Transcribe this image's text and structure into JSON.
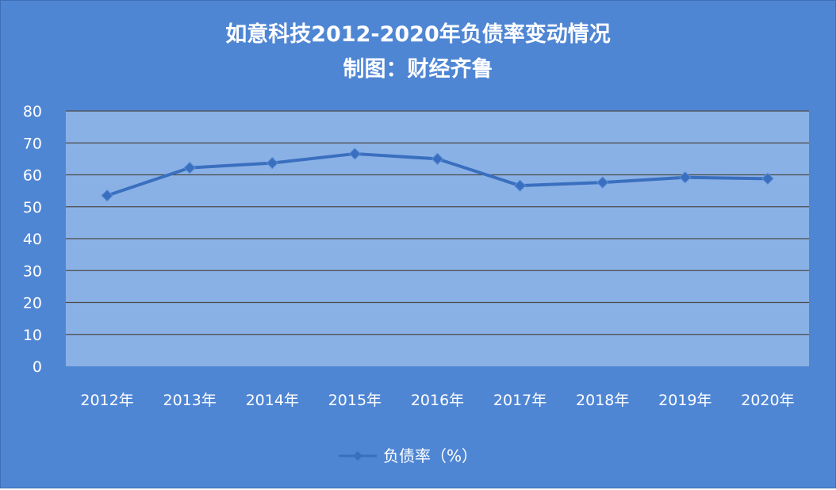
{
  "chart_data": {
    "type": "line",
    "title": "如意科技2012-2020年负债率变动情况",
    "subtitle": "制图：财经齐鲁",
    "categories": [
      "2012年",
      "2013年",
      "2014年",
      "2015年",
      "2016年",
      "2017年",
      "2018年",
      "2019年",
      "2020年"
    ],
    "series": [
      {
        "name": "负债率（%）",
        "values": [
          53.5,
          62.2,
          63.7,
          66.6,
          65.0,
          56.6,
          57.6,
          59.2,
          58.8
        ]
      }
    ],
    "ylim": [
      0,
      80
    ],
    "yticks": [
      "0",
      "10",
      "20",
      "30",
      "40",
      "50",
      "60",
      "70",
      "80"
    ],
    "grid": true,
    "legend_position": "bottom",
    "colors": {
      "background": "#4f86d4",
      "plot_area": "#8ab1e6",
      "line": "#3a6fbf",
      "gridline": "#4a4a4a",
      "text": "#ffffff"
    }
  }
}
